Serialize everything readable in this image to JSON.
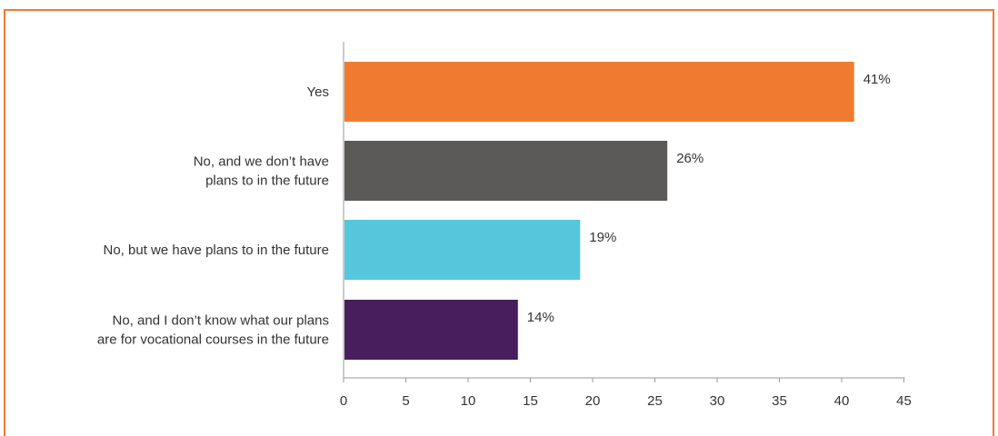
{
  "chart_data": {
    "type": "bar",
    "orientation": "horizontal",
    "categories": [
      [
        "Yes"
      ],
      [
        "No, and we don’t have",
        "plans to in the future"
      ],
      [
        "No, but we have plans to in the future"
      ],
      [
        "No, and I don’t know what our plans",
        "are for vocational courses in the future"
      ]
    ],
    "values": [
      41,
      26,
      19,
      14
    ],
    "value_labels": [
      "41%",
      "26%",
      "19%",
      "14%"
    ],
    "colors": [
      "#f07a30",
      "#5b5a58",
      "#56c6dc",
      "#481e5c"
    ],
    "xlim": [
      0,
      45
    ],
    "xticks": [
      "0",
      "5",
      "10",
      "15",
      "20",
      "25",
      "30",
      "35",
      "40",
      "45"
    ],
    "title": "",
    "xlabel": "",
    "ylabel": "",
    "grid": false,
    "legend": "none"
  },
  "theme": {
    "border_color": "#f07a30",
    "axis_color": "#9a9a9a",
    "text_color": "#333333"
  }
}
